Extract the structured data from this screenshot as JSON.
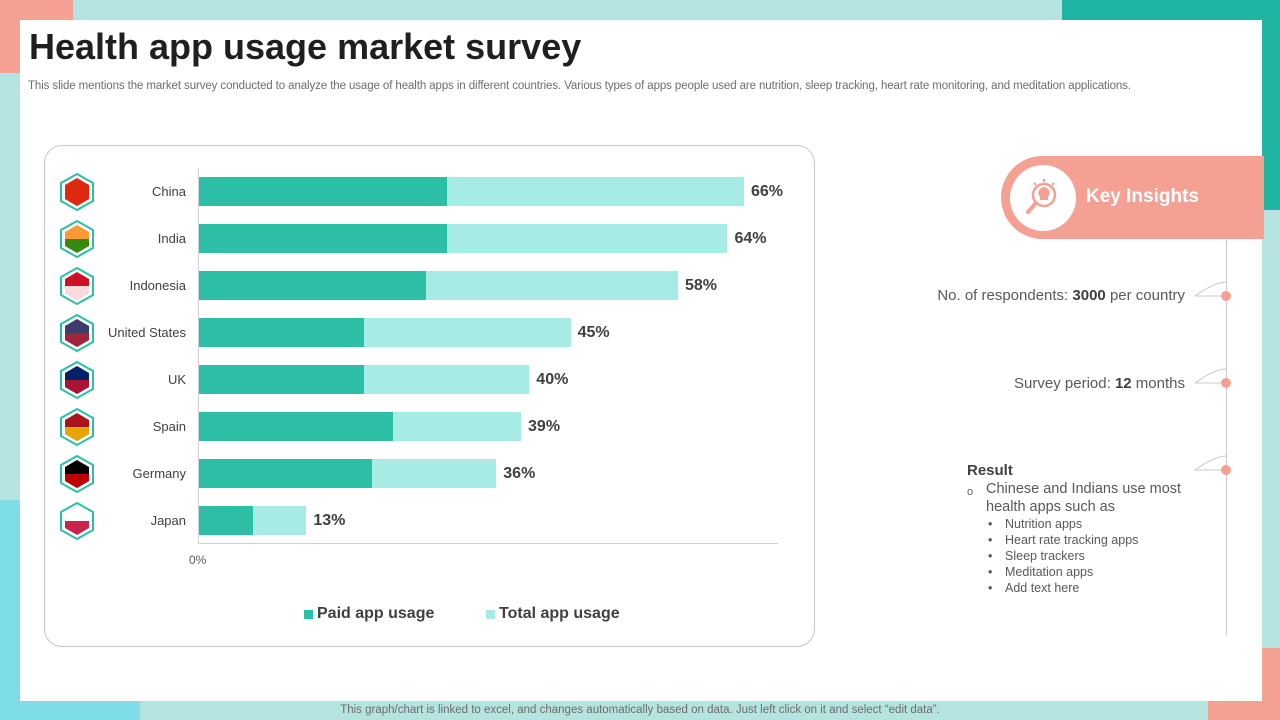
{
  "slide": {
    "title": "Health app usage market survey",
    "subtitle": "This slide mentions the market survey conducted to analyze the usage of health apps in different countries. Various types of apps people used are nutrition, sleep tracking, heart rate monitoring, and meditation applications.",
    "footer": "This graph/chart is linked to excel, and changes automatically based on data. Just left click on it and select “edit data”."
  },
  "colors": {
    "paid": "#2cbfa6",
    "total": "#a6ebe4",
    "accent": "#f4a193",
    "teal_dark": "#1fb5a3"
  },
  "chart_data": {
    "type": "bar",
    "orientation": "horizontal",
    "categories": [
      "China",
      "India",
      "Indonesia",
      "United States",
      "UK",
      "Spain",
      "Germany",
      "Japan"
    ],
    "series": [
      {
        "name": "Paid app usage",
        "values": [
          30,
          30,
          27.5,
          20,
          20,
          23.5,
          21,
          6.5
        ]
      },
      {
        "name": "Total app usage",
        "values": [
          66,
          64,
          58,
          45,
          40,
          39,
          36,
          13
        ]
      }
    ],
    "data_labels": [
      "66%",
      "64%",
      "58%",
      "45%",
      "40%",
      "39%",
      "36%",
      "13%"
    ],
    "x_tick_labels": [
      "0%"
    ],
    "xlim": [
      0,
      66
    ],
    "legend_position": "bottom"
  },
  "insights": {
    "title": "Key Insights",
    "respondents_label": "No. of respondents:",
    "respondents_value": "3000",
    "respondents_suffix": "per country",
    "period_label": "Survey period:",
    "period_value": "12",
    "period_suffix": "months",
    "result_title": "Result",
    "result_bullet": "o",
    "result_lead": "Chinese and Indians use most health apps such as",
    "result_items": [
      "Nutrition apps",
      "Heart rate tracking apps",
      "Sleep trackers",
      "Meditation apps",
      "Add text here"
    ]
  }
}
